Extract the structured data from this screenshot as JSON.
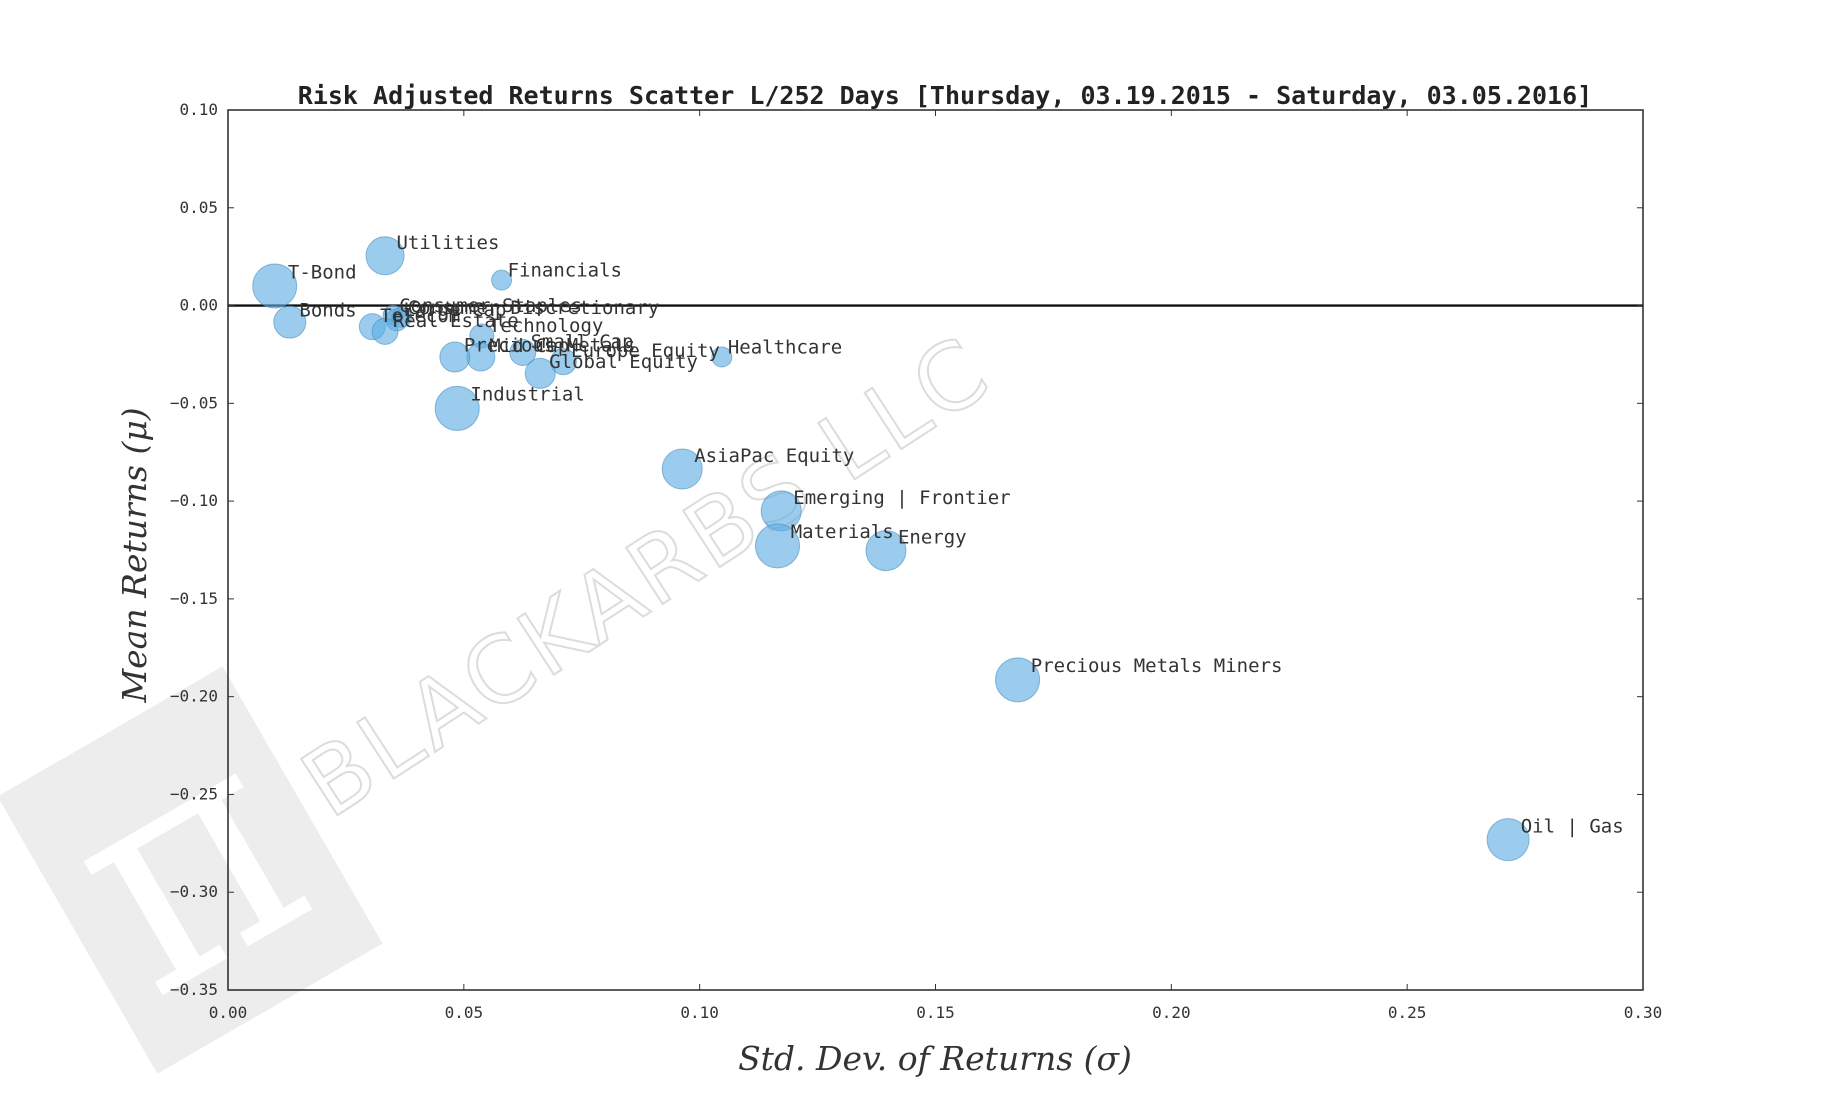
{
  "chart_data": {
    "type": "scatter",
    "title": "Risk Adjusted Returns Scatter L/252 Days [Thursday, 03.19.2015 - Saturday, 03.05.2016]",
    "xlabel": "Std. Dev. of Returns (σ)",
    "ylabel": "Mean Returns (μ)",
    "xlim": [
      0.0,
      0.3
    ],
    "ylim": [
      -0.35,
      0.1
    ],
    "xticks": [
      "0.00",
      "0.05",
      "0.10",
      "0.15",
      "0.20",
      "0.25",
      "0.30"
    ],
    "yticks": [
      "0.10",
      "0.05",
      "0.00",
      "−0.05",
      "−0.10",
      "−0.15",
      "−0.20",
      "−0.25",
      "−0.30",
      "−0.35"
    ],
    "grid": false,
    "zero_line": 0.0,
    "marker_color": "#5dade2",
    "points": [
      {
        "label": "T-Bond",
        "x": 0.0099,
        "y": 0.01,
        "size": 22
      },
      {
        "label": "Bonds",
        "x": 0.0131,
        "y": -0.0085,
        "size": 16
      },
      {
        "label": "Utilities",
        "x": 0.0333,
        "y": 0.0255,
        "size": 19
      },
      {
        "label": "Financials",
        "x": 0.058,
        "y": 0.013,
        "size": 10
      },
      {
        "label": "Consumer Staples",
        "x": 0.035,
        "y": -0.005,
        "size": 10
      },
      {
        "label": "Consumer Discretionary",
        "x": 0.0368,
        "y": -0.006,
        "size": 10
      },
      {
        "label": "Telecom",
        "x": 0.0306,
        "y": -0.0108,
        "size": 13
      },
      {
        "label": "Large Cap",
        "x": 0.0358,
        "y": -0.0073,
        "size": 11
      },
      {
        "label": "Real Estate",
        "x": 0.0333,
        "y": -0.0132,
        "size": 13
      },
      {
        "label": "Technology",
        "x": 0.0538,
        "y": -0.0156,
        "size": 12
      },
      {
        "label": "Mid Cap",
        "x": 0.0536,
        "y": -0.0263,
        "size": 14
      },
      {
        "label": "Small Cap",
        "x": 0.0625,
        "y": -0.024,
        "size": 13
      },
      {
        "label": "Precious Metals",
        "x": 0.0481,
        "y": -0.0263,
        "size": 15
      },
      {
        "label": "Europe Equity",
        "x": 0.0711,
        "y": -0.0287,
        "size": 13
      },
      {
        "label": "Global Equity",
        "x": 0.0662,
        "y": -0.0347,
        "size": 15
      },
      {
        "label": "Healthcare",
        "x": 0.1047,
        "y": -0.0263,
        "size": 10
      },
      {
        "label": "Industrial",
        "x": 0.0486,
        "y": -0.0526,
        "size": 22
      },
      {
        "label": "AsiaPac Equity",
        "x": 0.0963,
        "y": -0.0836,
        "size": 20
      },
      {
        "label": "Emerging | Frontier",
        "x": 0.1173,
        "y": -0.105,
        "size": 20
      },
      {
        "label": "Materials",
        "x": 0.1165,
        "y": -0.1229,
        "size": 22
      },
      {
        "label": "Energy",
        "x": 0.1395,
        "y": -0.1253,
        "size": 20
      },
      {
        "label": "Precious Metals Miners",
        "x": 0.1674,
        "y": -0.1914,
        "size": 22
      },
      {
        "label": "Oil | Gas",
        "x": 0.2714,
        "y": -0.2731,
        "size": 21
      }
    ]
  },
  "watermark": {
    "text": "BLACKARBS LLC",
    "logo_glyph": "π"
  }
}
